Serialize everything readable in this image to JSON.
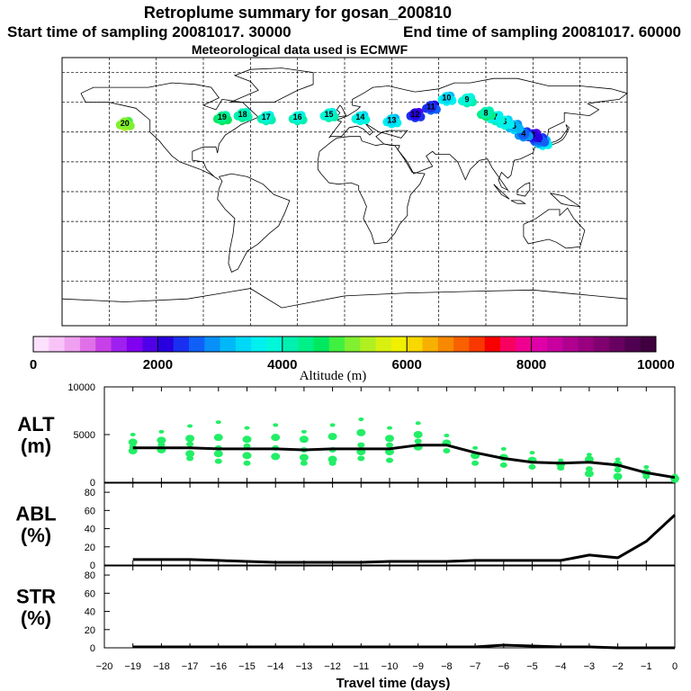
{
  "titles": {
    "main": "Retroplume summary for gosan_200810",
    "start": "Start time of sampling 20081017. 30000",
    "end": "End time of sampling 20081017. 60000",
    "met": "Meteorological data used is ECMWF"
  },
  "colors": {
    "line": "#000000",
    "dots": "#22ee66",
    "frame": "#000000"
  },
  "chart_data": [
    {
      "type": "map",
      "title": "Retroplume summary for gosan_200810",
      "lon_range": [
        -180,
        180
      ],
      "lat_range": [
        -90,
        90
      ],
      "grid": true,
      "colorbar": {
        "label": "Altitude (m)",
        "range": [
          0,
          10000
        ],
        "ticks": [
          "0",
          "2000",
          "4000",
          "6000",
          "8000",
          "10000"
        ],
        "colors": [
          "#fce0fc",
          "#f8c4f8",
          "#f0a0f0",
          "#e070e8",
          "#c840e8",
          "#a020f0",
          "#8000f0",
          "#5000e8",
          "#2800e0",
          "#1a30f0",
          "#1060f8",
          "#0890f8",
          "#00b8f8",
          "#00d8f8",
          "#00f0f0",
          "#00f8d8",
          "#00f0b0",
          "#00f088",
          "#00e860",
          "#40f040",
          "#80f030",
          "#b0f020",
          "#d8f010",
          "#f0f000",
          "#f8d800",
          "#f8b000",
          "#f88800",
          "#f86000",
          "#f83800",
          "#f80000",
          "#f80060",
          "#f00090",
          "#e000a8",
          "#c800a0",
          "#b00090",
          "#980080",
          "#800070",
          "#680060",
          "#500050",
          "#400040"
        ]
      },
      "points": [
        {
          "id": "1",
          "lon": 126.2,
          "lat": 33.3,
          "alt": 3300
        },
        {
          "id": "2",
          "lon": 124,
          "lat": 35,
          "alt": 2500
        },
        {
          "id": "3",
          "lon": 120,
          "lat": 38,
          "alt": 2000
        },
        {
          "id": "4",
          "lon": 114,
          "lat": 39,
          "alt": 2600
        },
        {
          "id": "5",
          "lon": 108,
          "lat": 44,
          "alt": 3000
        },
        {
          "id": "6",
          "lon": 102,
          "lat": 47,
          "alt": 3500
        },
        {
          "id": "7",
          "lon": 96,
          "lat": 50,
          "alt": 3700
        },
        {
          "id": "8",
          "lon": 90,
          "lat": 53,
          "alt": 4200
        },
        {
          "id": "9",
          "lon": 78,
          "lat": 62,
          "alt": 3800
        },
        {
          "id": "10",
          "lon": 65,
          "lat": 63,
          "alt": 3400
        },
        {
          "id": "11",
          "lon": 55,
          "lat": 57,
          "alt": 2300
        },
        {
          "id": "12",
          "lon": 45,
          "lat": 52,
          "alt": 2100
        },
        {
          "id": "13",
          "lon": 30,
          "lat": 48,
          "alt": 3400
        },
        {
          "id": "14",
          "lon": 10,
          "lat": 50,
          "alt": 3600
        },
        {
          "id": "15",
          "lon": -10,
          "lat": 52,
          "alt": 3800
        },
        {
          "id": "16",
          "lon": -30,
          "lat": 50,
          "alt": 3900
        },
        {
          "id": "17",
          "lon": -50,
          "lat": 50,
          "alt": 3900
        },
        {
          "id": "18",
          "lon": -65,
          "lat": 52,
          "alt": 4000
        },
        {
          "id": "19",
          "lon": -78,
          "lat": 50,
          "alt": 4400
        },
        {
          "id": "20",
          "lon": -140,
          "lat": 46,
          "alt": 5000
        }
      ]
    },
    {
      "type": "line",
      "panel": "ALT",
      "ylabel": "ALT\n(m)",
      "ylim": [
        0,
        10000
      ],
      "yticks": [
        "10000",
        "5000",
        "0"
      ],
      "x": [
        -19,
        -18,
        -17,
        -16,
        -15,
        -14,
        -13,
        -12,
        -11,
        -10,
        -9,
        -8,
        -7,
        -6,
        -5,
        -4,
        -3,
        -2,
        -1,
        0
      ],
      "values": [
        3600,
        3600,
        3600,
        3500,
        3500,
        3500,
        3400,
        3500,
        3500,
        3500,
        3900,
        3900,
        3100,
        2500,
        2100,
        2000,
        2100,
        1800,
        1000,
        500
      ],
      "scatter": [
        [
          5000,
          4200,
          3700,
          3300
        ],
        [
          5300,
          4400,
          3900,
          3400
        ],
        [
          5900,
          4600,
          4000,
          3000,
          2500
        ],
        [
          6300,
          4700,
          3600,
          3000,
          2200
        ],
        [
          5700,
          4500,
          3800,
          2800,
          2000
        ],
        [
          6000,
          4700,
          3600,
          2700
        ],
        [
          5300,
          4500,
          3400,
          2600,
          2000
        ],
        [
          6000,
          4800,
          3400,
          2400,
          2000
        ],
        [
          6600,
          5200,
          3900,
          3200,
          2500
        ],
        [
          5700,
          4600,
          3900,
          3200,
          2300
        ],
        [
          6200,
          5000,
          4300,
          3700
        ],
        [
          4900,
          4100,
          3300
        ],
        [
          3600,
          2800,
          2000
        ],
        [
          3500,
          2600,
          1800
        ],
        [
          3100,
          2300,
          1600
        ],
        [
          2300,
          1900,
          1500
        ],
        [
          2900,
          2400,
          1400,
          900
        ],
        [
          2400,
          1900,
          1300,
          600
        ],
        [
          1600,
          1000,
          600
        ],
        [
          700,
          400,
          200
        ]
      ]
    },
    {
      "type": "line",
      "panel": "ABL",
      "ylabel": "ABL\n(%)",
      "ylim": [
        0,
        90
      ],
      "yticks": [
        "80",
        "60",
        "40",
        "20",
        "0"
      ],
      "x": [
        -19,
        -18,
        -17,
        -16,
        -15,
        -14,
        -13,
        -12,
        -11,
        -10,
        -9,
        -8,
        -7,
        -6,
        -5,
        -4,
        -3,
        -2,
        -1,
        0
      ],
      "values": [
        6,
        6,
        6,
        5,
        4,
        3,
        3,
        3,
        3,
        4,
        4,
        4,
        5,
        5,
        5,
        5,
        11,
        8,
        26,
        55
      ]
    },
    {
      "type": "line",
      "panel": "STR",
      "ylabel": "STR\n(%)",
      "ylim": [
        0,
        90
      ],
      "yticks": [
        "80",
        "60",
        "40",
        "20",
        "0"
      ],
      "x": [
        -19,
        -18,
        -17,
        -16,
        -15,
        -14,
        -13,
        -12,
        -11,
        -10,
        -9,
        -8,
        -7,
        -6,
        -5,
        -4,
        -3,
        -2,
        -1,
        0
      ],
      "values": [
        1,
        1,
        1,
        1,
        1,
        1,
        1,
        1,
        1,
        1,
        1,
        1,
        1,
        3,
        2,
        1,
        1,
        0,
        0,
        0
      ]
    }
  ],
  "xaxis": {
    "label": "Travel time (days)",
    "ticks": [
      "−20",
      "−19",
      "−18",
      "−17",
      "−16",
      "−15",
      "−14",
      "−13",
      "−12",
      "−11",
      "−10",
      "−9",
      "−8",
      "−7",
      "−6",
      "−5",
      "−4",
      "−3",
      "−2",
      "−1",
      "0"
    ],
    "range": [
      -20,
      0
    ]
  }
}
